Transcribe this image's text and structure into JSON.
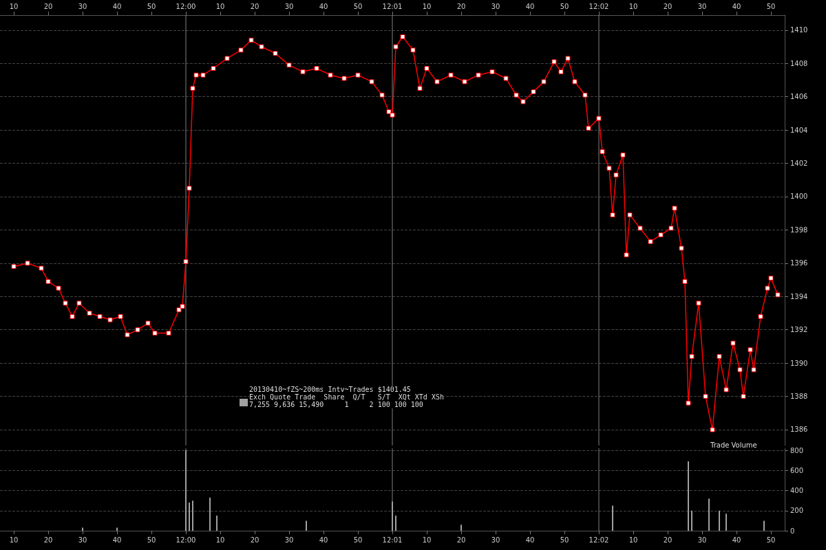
{
  "chart_data": [
    {
      "type": "line",
      "ylim": [
        1385.05,
        1410.9
      ],
      "yticks": [
        1386,
        1388,
        1390,
        1392,
        1394,
        1396,
        1398,
        1400,
        1402,
        1404,
        1406,
        1408,
        1410
      ],
      "xlim": [
        "2013-04-10T11:59:06",
        "2013-04-10T12:02:54"
      ],
      "xticks": [
        {
          "value": "2013-04-10T11:59:10",
          "label": "10"
        },
        {
          "value": "2013-04-10T11:59:20",
          "label": "20"
        },
        {
          "value": "2013-04-10T11:59:30",
          "label": "30"
        },
        {
          "value": "2013-04-10T11:59:40",
          "label": "40"
        },
        {
          "value": "2013-04-10T11:59:50",
          "label": "50"
        },
        {
          "value": "2013-04-10T12:00:00",
          "label": "12:00"
        },
        {
          "value": "2013-04-10T12:00:10",
          "label": "10"
        },
        {
          "value": "2013-04-10T12:00:20",
          "label": "20"
        },
        {
          "value": "2013-04-10T12:00:30",
          "label": "30"
        },
        {
          "value": "2013-04-10T12:00:40",
          "label": "40"
        },
        {
          "value": "2013-04-10T12:00:50",
          "label": "50"
        },
        {
          "value": "2013-04-10T12:01:00",
          "label": "12:01"
        },
        {
          "value": "2013-04-10T12:01:10",
          "label": "10"
        },
        {
          "value": "2013-04-10T12:01:20",
          "label": "20"
        },
        {
          "value": "2013-04-10T12:01:30",
          "label": "30"
        },
        {
          "value": "2013-04-10T12:01:40",
          "label": "40"
        },
        {
          "value": "2013-04-10T12:01:50",
          "label": "50"
        },
        {
          "value": "2013-04-10T12:02:00",
          "label": "12:02"
        },
        {
          "value": "2013-04-10T12:02:10",
          "label": "10"
        },
        {
          "value": "2013-04-10T12:02:20",
          "label": "20"
        },
        {
          "value": "2013-04-10T12:02:30",
          "label": "30"
        },
        {
          "value": "2013-04-10T12:02:40",
          "label": "40"
        },
        {
          "value": "2013-04-10T12:02:50",
          "label": "50"
        }
      ],
      "grid": "y",
      "marker": "square",
      "line_style": "solid",
      "ref_lines": [
        {
          "axis": "x",
          "value": "2013-04-10T12:00:00",
          "color": "#808080"
        },
        {
          "axis": "x",
          "value": "2013-04-10T12:01:00",
          "color": "#808080"
        },
        {
          "axis": "x",
          "value": "2013-04-10T12:02:00",
          "color": "#808080"
        }
      ],
      "annotations": [
        "20130410~fZS~200ms Intv~Trades $1401.45",
        "Exch Quote Trade  Share  Q/T   S/T  XQt XTd XSh",
        "7,255 9,636 15,490     1     2 100 100 100"
      ],
      "series": [
        {
          "color": "#ff0000",
          "x": [
            "2013-04-10T11:59:10",
            "2013-04-10T11:59:14",
            "2013-04-10T11:59:18",
            "2013-04-10T11:59:20",
            "2013-04-10T11:59:23",
            "2013-04-10T11:59:25",
            "2013-04-10T11:59:27",
            "2013-04-10T11:59:29",
            "2013-04-10T11:59:32",
            "2013-04-10T11:59:35",
            "2013-04-10T11:59:38",
            "2013-04-10T11:59:41",
            "2013-04-10T11:59:43",
            "2013-04-10T11:59:46",
            "2013-04-10T11:59:49",
            "2013-04-10T11:59:51",
            "2013-04-10T11:59:55",
            "2013-04-10T11:59:58",
            "2013-04-10T11:59:59",
            "2013-04-10T12:00:00",
            "2013-04-10T12:00:01",
            "2013-04-10T12:00:02",
            "2013-04-10T12:00:03",
            "2013-04-10T12:00:05",
            "2013-04-10T12:00:08",
            "2013-04-10T12:00:12",
            "2013-04-10T12:00:16",
            "2013-04-10T12:00:19",
            "2013-04-10T12:00:22",
            "2013-04-10T12:00:26",
            "2013-04-10T12:00:30",
            "2013-04-10T12:00:34",
            "2013-04-10T12:00:38",
            "2013-04-10T12:00:42",
            "2013-04-10T12:00:46",
            "2013-04-10T12:00:50",
            "2013-04-10T12:00:54",
            "2013-04-10T12:00:57",
            "2013-04-10T12:00:59",
            "2013-04-10T12:01:00",
            "2013-04-10T12:01:01",
            "2013-04-10T12:01:03",
            "2013-04-10T12:01:06",
            "2013-04-10T12:01:08",
            "2013-04-10T12:01:10",
            "2013-04-10T12:01:13",
            "2013-04-10T12:01:17",
            "2013-04-10T12:01:21",
            "2013-04-10T12:01:25",
            "2013-04-10T12:01:29",
            "2013-04-10T12:01:33",
            "2013-04-10T12:01:36",
            "2013-04-10T12:01:38",
            "2013-04-10T12:01:41",
            "2013-04-10T12:01:44",
            "2013-04-10T12:01:47",
            "2013-04-10T12:01:49",
            "2013-04-10T12:01:51",
            "2013-04-10T12:01:53",
            "2013-04-10T12:01:56",
            "2013-04-10T12:01:57",
            "2013-04-10T12:02:00",
            "2013-04-10T12:02:01",
            "2013-04-10T12:02:03",
            "2013-04-10T12:02:04",
            "2013-04-10T12:02:05",
            "2013-04-10T12:02:07",
            "2013-04-10T12:02:08",
            "2013-04-10T12:02:09",
            "2013-04-10T12:02:12",
            "2013-04-10T12:02:15",
            "2013-04-10T12:02:18",
            "2013-04-10T12:02:21",
            "2013-04-10T12:02:22",
            "2013-04-10T12:02:24",
            "2013-04-10T12:02:25",
            "2013-04-10T12:02:26",
            "2013-04-10T12:02:27",
            "2013-04-10T12:02:29",
            "2013-04-10T12:02:31",
            "2013-04-10T12:02:33",
            "2013-04-10T12:02:35",
            "2013-04-10T12:02:37",
            "2013-04-10T12:02:39",
            "2013-04-10T12:02:41",
            "2013-04-10T12:02:42",
            "2013-04-10T12:02:44",
            "2013-04-10T12:02:45",
            "2013-04-10T12:02:47",
            "2013-04-10T12:02:49",
            "2013-04-10T12:02:50",
            "2013-04-10T12:02:52"
          ],
          "values": [
            1395.8,
            1396.0,
            1395.7,
            1394.9,
            1394.5,
            1393.6,
            1392.8,
            1393.6,
            1393.0,
            1392.8,
            1392.6,
            1392.8,
            1391.7,
            1392.0,
            1392.4,
            1391.8,
            1391.8,
            1393.2,
            1393.4,
            1396.1,
            1400.5,
            1406.5,
            1407.3,
            1407.3,
            1407.7,
            1408.3,
            1408.8,
            1409.4,
            1409.0,
            1408.6,
            1407.9,
            1407.5,
            1407.7,
            1407.3,
            1407.1,
            1407.3,
            1406.9,
            1406.1,
            1405.1,
            1404.9,
            1409.0,
            1409.6,
            1408.8,
            1406.5,
            1407.7,
            1406.9,
            1407.3,
            1406.9,
            1407.3,
            1407.5,
            1407.1,
            1406.1,
            1405.7,
            1406.3,
            1406.9,
            1408.1,
            1407.5,
            1408.3,
            1406.9,
            1406.1,
            1404.1,
            1404.7,
            1402.7,
            1401.7,
            1398.9,
            1401.3,
            1402.5,
            1396.5,
            1398.9,
            1398.1,
            1397.3,
            1397.7,
            1398.1,
            1399.3,
            1396.9,
            1394.9,
            1387.6,
            1390.4,
            1393.6,
            1388.0,
            1386.0,
            1390.4,
            1388.4,
            1391.2,
            1389.6,
            1388.0,
            1390.8,
            1389.6,
            1392.8,
            1394.5,
            1395.1,
            1394.1
          ]
        }
      ]
    },
    {
      "type": "bar",
      "ylim": [
        0,
        820
      ],
      "yticks": [
        0,
        200,
        400,
        600,
        800
      ],
      "xlim": [
        "2013-04-10T11:59:06",
        "2013-04-10T12:02:54"
      ],
      "xticks": [
        {
          "value": "2013-04-10T11:59:10",
          "label": "10"
        },
        {
          "value": "2013-04-10T11:59:20",
          "label": "20"
        },
        {
          "value": "2013-04-10T11:59:30",
          "label": "30"
        },
        {
          "value": "2013-04-10T11:59:40",
          "label": "40"
        },
        {
          "value": "2013-04-10T11:59:50",
          "label": "50"
        },
        {
          "value": "2013-04-10T12:00:00",
          "label": "12:00"
        },
        {
          "value": "2013-04-10T12:00:10",
          "label": "10"
        },
        {
          "value": "2013-04-10T12:00:20",
          "label": "20"
        },
        {
          "value": "2013-04-10T12:00:30",
          "label": "30"
        },
        {
          "value": "2013-04-10T12:00:40",
          "label": "40"
        },
        {
          "value": "2013-04-10T12:00:50",
          "label": "50"
        },
        {
          "value": "2013-04-10T12:01:00",
          "label": "12:01"
        },
        {
          "value": "2013-04-10T12:01:10",
          "label": "10"
        },
        {
          "value": "2013-04-10T12:01:20",
          "label": "20"
        },
        {
          "value": "2013-04-10T12:01:30",
          "label": "30"
        },
        {
          "value": "2013-04-10T12:01:40",
          "label": "40"
        },
        {
          "value": "2013-04-10T12:01:50",
          "label": "50"
        },
        {
          "value": "2013-04-10T12:02:00",
          "label": "12:02"
        },
        {
          "value": "2013-04-10T12:02:10",
          "label": "10"
        },
        {
          "value": "2013-04-10T12:02:20",
          "label": "20"
        },
        {
          "value": "2013-04-10T12:02:30",
          "label": "30"
        },
        {
          "value": "2013-04-10T12:02:40",
          "label": "40"
        },
        {
          "value": "2013-04-10T12:02:50",
          "label": "50"
        }
      ],
      "grid": "y",
      "ref_lines": [
        {
          "axis": "x",
          "value": "2013-04-10T12:00:00",
          "color": "#808080"
        },
        {
          "axis": "x",
          "value": "2013-04-10T12:01:00",
          "color": "#808080"
        },
        {
          "axis": "x",
          "value": "2013-04-10T12:02:00",
          "color": "#808080"
        }
      ],
      "annotations": [
        "Trade Volume"
      ],
      "series": [
        {
          "color": "#a0a0a0",
          "x": [
            "2013-04-10T11:59:30",
            "2013-04-10T11:59:40",
            "2013-04-10T12:00:00",
            "2013-04-10T12:00:01",
            "2013-04-10T12:00:02",
            "2013-04-10T12:00:07",
            "2013-04-10T12:00:09",
            "2013-04-10T12:00:35",
            "2013-04-10T12:01:00",
            "2013-04-10T12:01:01",
            "2013-04-10T12:01:20",
            "2013-04-10T12:02:04",
            "2013-04-10T12:02:26",
            "2013-04-10T12:02:27",
            "2013-04-10T12:02:32",
            "2013-04-10T12:02:35",
            "2013-04-10T12:02:37",
            "2013-04-10T12:02:48"
          ],
          "values": [
            30,
            30,
            800,
            280,
            300,
            330,
            150,
            100,
            290,
            150,
            60,
            250,
            690,
            200,
            320,
            200,
            170,
            100
          ]
        }
      ]
    }
  ]
}
